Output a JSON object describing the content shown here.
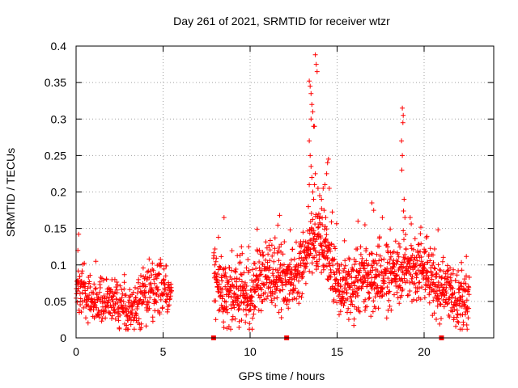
{
  "chart_data": {
    "type": "scatter",
    "title": "Day 261 of 2021, SRMTID for receiver wtzr",
    "xlabel": "GPS time / hours",
    "ylabel": "SRMTID / TECUs",
    "xlim": [
      0,
      24
    ],
    "ylim": [
      0,
      0.4
    ],
    "xticks": [
      0,
      5,
      10,
      15,
      20
    ],
    "yticks": [
      0,
      0.05,
      0.1,
      0.15,
      0.2,
      0.25,
      0.3,
      0.35,
      0.4
    ],
    "xtick_labels": [
      "0",
      "5",
      "10",
      "15",
      "20"
    ],
    "ytick_labels": [
      "0",
      "0.05",
      "0.1",
      "0.15",
      "0.2",
      "0.25",
      "0.3",
      "0.35",
      "0.4"
    ],
    "grid": true,
    "marker": "+",
    "color": "#ff0000",
    "axis_markers": {
      "marker": "square",
      "x": [
        7.9,
        12.1,
        21.0
      ],
      "y": 0
    },
    "series": [
      {
        "name": "SRMTID",
        "segments": [
          {
            "x_start": 0.0,
            "x_end": 5.5,
            "n": 420,
            "trend": [
              [
                0,
                0.07
              ],
              [
                0.6,
                0.06
              ],
              [
                1.2,
                0.045
              ],
              [
                1.8,
                0.055
              ],
              [
                2.4,
                0.05
              ],
              [
                3.0,
                0.035
              ],
              [
                3.6,
                0.05
              ],
              [
                4.2,
                0.06
              ],
              [
                4.8,
                0.07
              ],
              [
                5.5,
                0.06
              ]
            ],
            "spread": 0.018
          },
          {
            "x_start": 7.9,
            "x_end": 22.6,
            "n": 1350,
            "trend": [
              [
                7.9,
                0.07
              ],
              [
                8.5,
                0.065
              ],
              [
                9.2,
                0.06
              ],
              [
                10.0,
                0.055
              ],
              [
                10.5,
                0.075
              ],
              [
                11.0,
                0.09
              ],
              [
                12.0,
                0.085
              ],
              [
                12.8,
                0.08
              ],
              [
                13.3,
                0.12
              ],
              [
                13.7,
                0.14
              ],
              [
                14.3,
                0.12
              ],
              [
                15.0,
                0.07
              ],
              [
                15.8,
                0.065
              ],
              [
                16.5,
                0.08
              ],
              [
                17.5,
                0.08
              ],
              [
                18.5,
                0.09
              ],
              [
                19.0,
                0.1
              ],
              [
                20.0,
                0.09
              ],
              [
                21.0,
                0.07
              ],
              [
                22.0,
                0.05
              ],
              [
                22.6,
                0.055
              ]
            ],
            "spread": 0.022
          }
        ],
        "extra_points": [
          [
            0.15,
            0.142
          ],
          [
            0.1,
            0.12
          ],
          [
            8.5,
            0.165
          ],
          [
            11.7,
            0.168
          ],
          [
            13.4,
            0.352
          ],
          [
            13.45,
            0.345
          ],
          [
            13.5,
            0.335
          ],
          [
            13.55,
            0.32
          ],
          [
            13.6,
            0.31
          ],
          [
            13.65,
            0.29
          ],
          [
            13.75,
            0.388
          ],
          [
            13.8,
            0.375
          ],
          [
            13.85,
            0.365
          ],
          [
            13.7,
            0.29
          ],
          [
            13.5,
            0.3
          ],
          [
            13.4,
            0.27
          ],
          [
            13.45,
            0.25
          ],
          [
            13.5,
            0.235
          ],
          [
            13.55,
            0.22
          ],
          [
            13.6,
            0.2
          ],
          [
            13.65,
            0.19
          ],
          [
            13.7,
            0.21
          ],
          [
            13.75,
            0.225
          ],
          [
            13.4,
            0.21
          ],
          [
            13.35,
            0.18
          ],
          [
            13.9,
            0.205
          ],
          [
            14.0,
            0.195
          ],
          [
            14.1,
            0.19
          ],
          [
            14.2,
            0.205
          ],
          [
            14.3,
            0.21
          ],
          [
            14.4,
            0.225
          ],
          [
            14.45,
            0.24
          ],
          [
            14.5,
            0.245
          ],
          [
            14.25,
            0.175
          ],
          [
            14.35,
            0.165
          ],
          [
            14.15,
            0.155
          ],
          [
            13.95,
            0.17
          ],
          [
            14.55,
            0.205
          ],
          [
            18.75,
            0.315
          ],
          [
            18.8,
            0.305
          ],
          [
            18.78,
            0.295
          ],
          [
            18.7,
            0.27
          ],
          [
            18.75,
            0.25
          ],
          [
            18.72,
            0.23
          ],
          [
            18.85,
            0.19
          ],
          [
            18.9,
            0.165
          ],
          [
            17.0,
            0.185
          ],
          [
            17.1,
            0.175
          ],
          [
            16.2,
            0.16
          ],
          [
            16.6,
            0.155
          ],
          [
            17.6,
            0.165
          ],
          [
            19.2,
            0.165
          ],
          [
            20.8,
            0.148
          ],
          [
            9.5,
            0.125
          ],
          [
            12.3,
            0.148
          ]
        ]
      }
    ]
  }
}
